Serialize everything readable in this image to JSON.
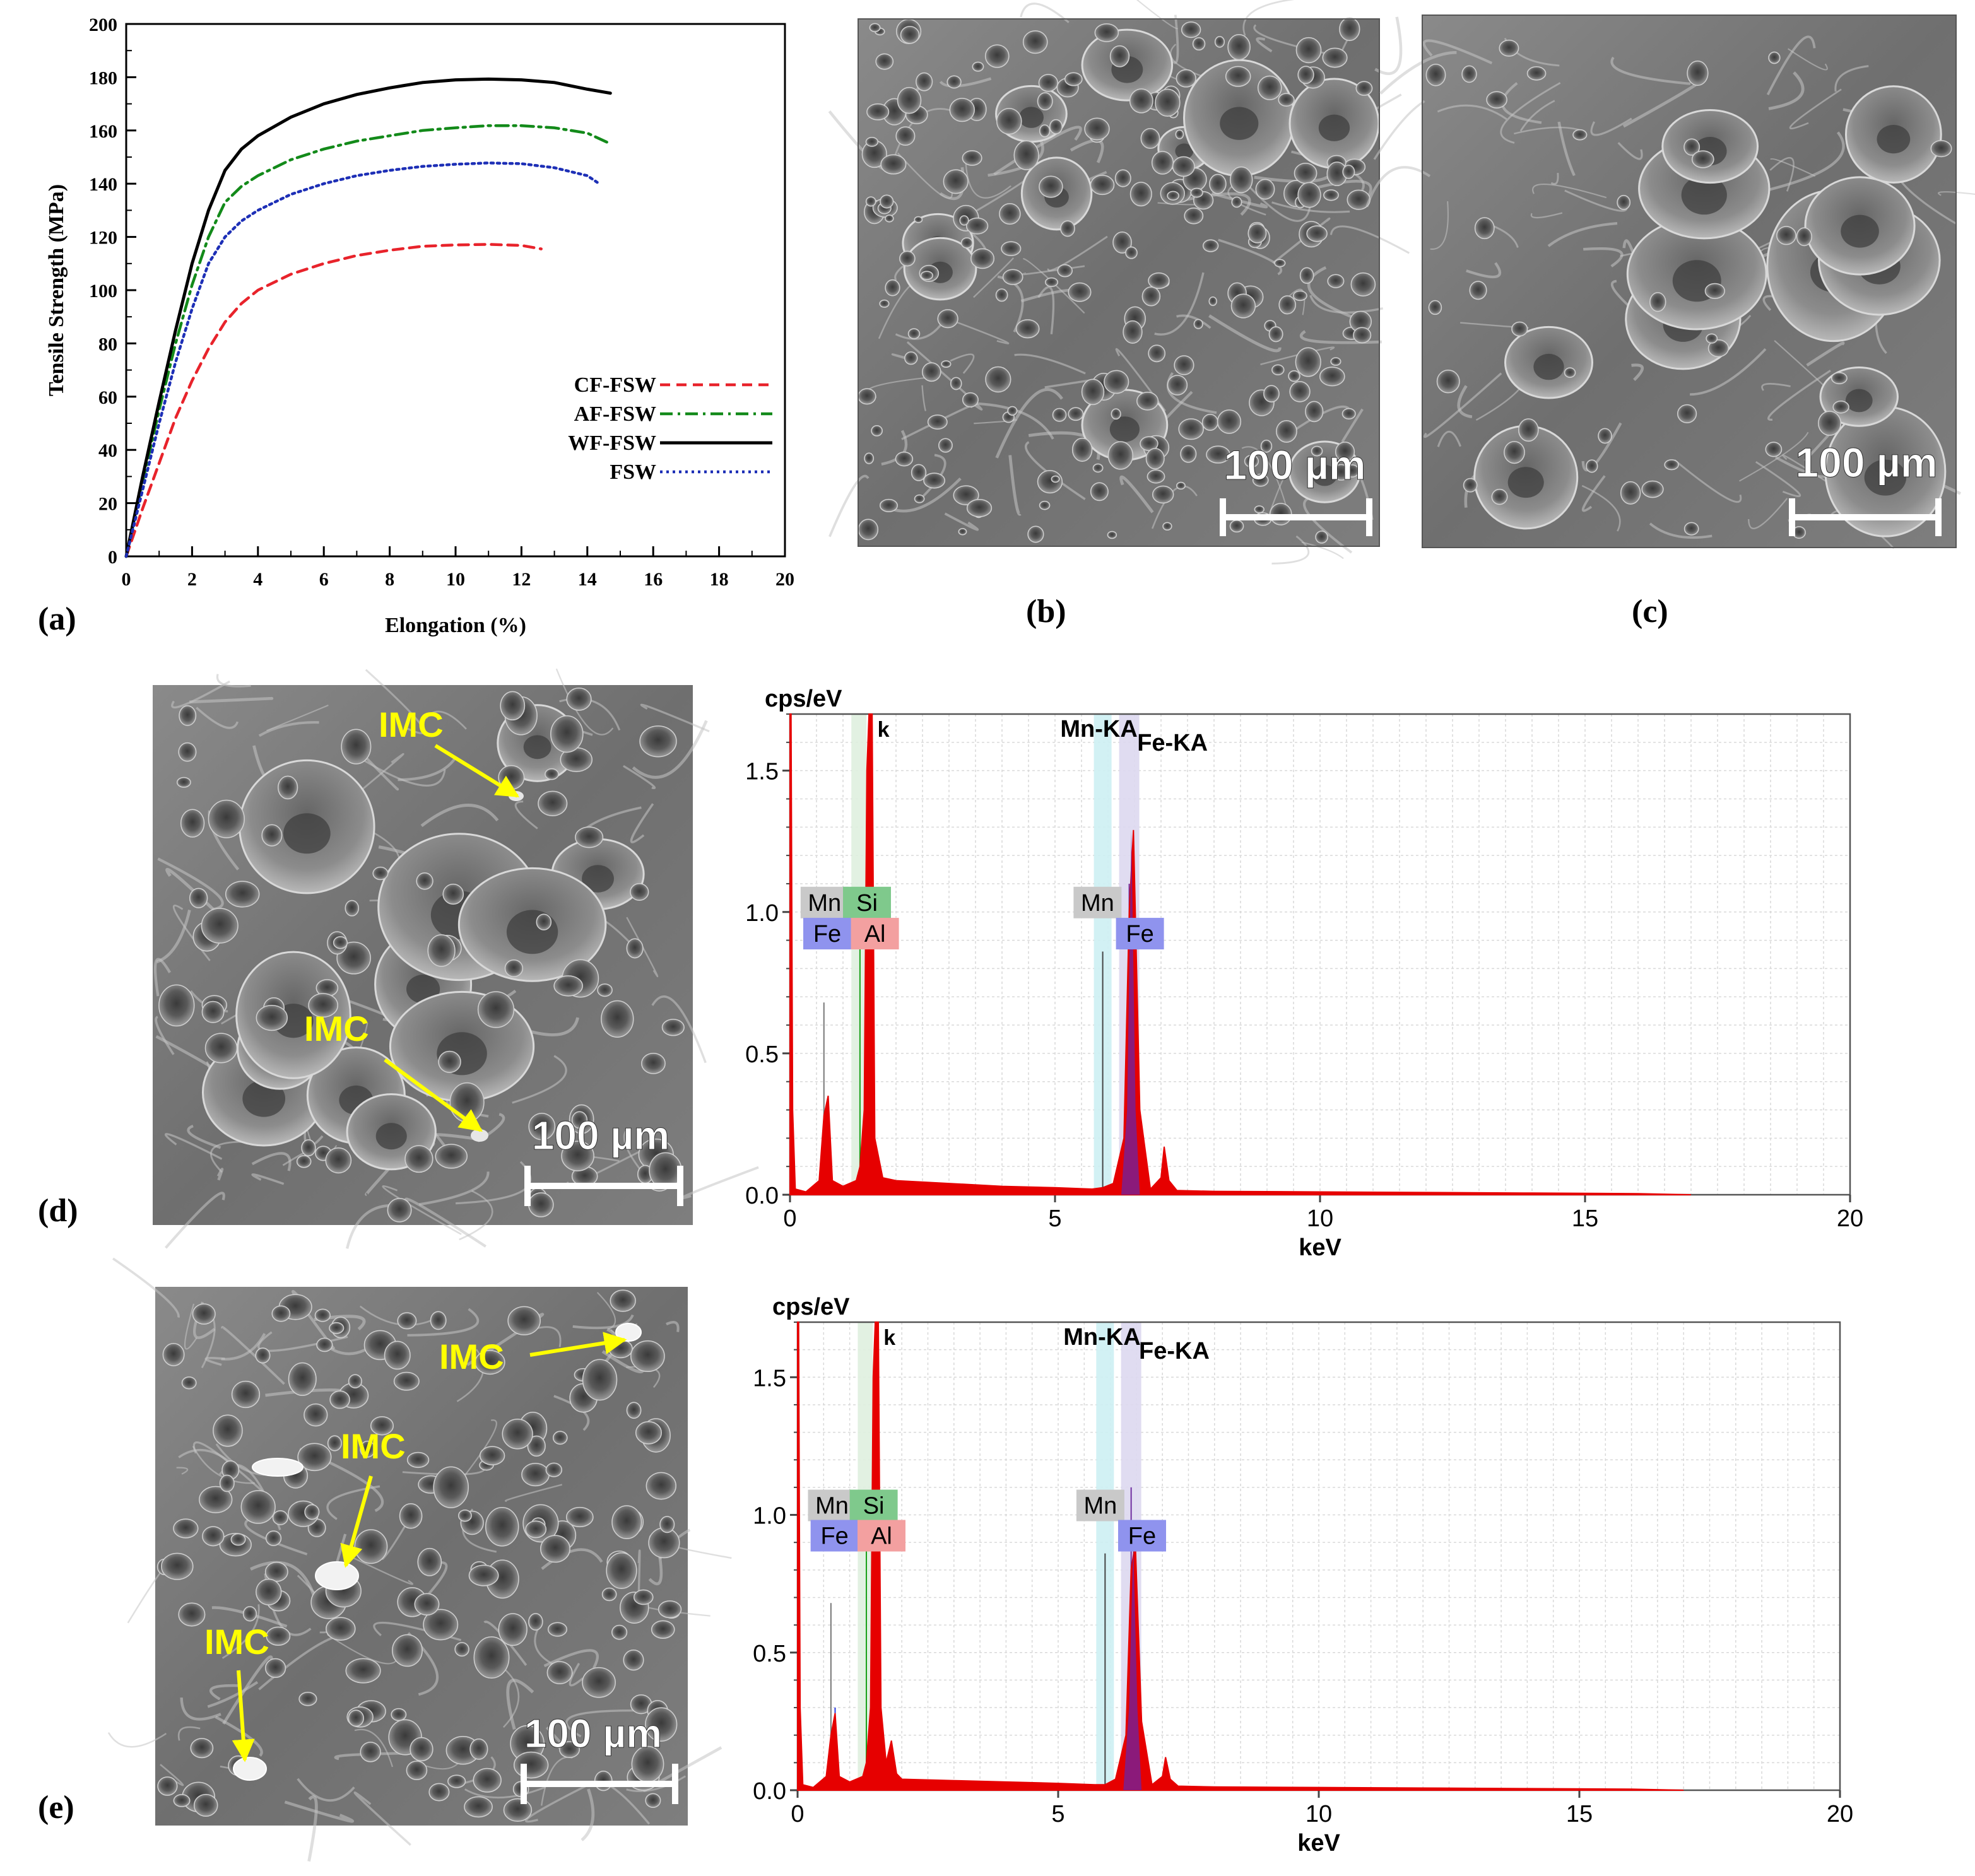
{
  "panel_labels": {
    "a": "(a)",
    "b": "(b)",
    "c": "(c)",
    "d": "(d)",
    "e": "(e)"
  },
  "scale_bars": {
    "b": "100 µm",
    "c": "100 µm",
    "d": "100 µm",
    "e": "100 µm"
  },
  "annotations": {
    "d": [
      "IMC",
      "IMC"
    ],
    "e": [
      "IMC",
      "IMC",
      "IMC"
    ]
  },
  "colors": {
    "cf": "#e8232b",
    "af": "#138a1a",
    "wf": "#000000",
    "fsw": "#1d2fb6",
    "spectrum": "#e60000",
    "imc": "#ffff00",
    "mn_box": "#c9c9c9",
    "si_box": "#7fc98c",
    "fe_box": "#8f93ee",
    "al_box": "#f3a0a0",
    "mn_band": "#cdeff3",
    "fe_band": "#ddd8ef"
  },
  "chart_data": [
    {
      "id": "a",
      "type": "line",
      "xlabel": "Elongation (%)",
      "ylabel": "Tensile Strength (MPa)",
      "xlim": [
        0,
        20
      ],
      "ylim": [
        0,
        200
      ],
      "xticks": [
        "0",
        "2",
        "4",
        "6",
        "8",
        "10",
        "12",
        "14",
        "16",
        "18",
        "20"
      ],
      "yticks": [
        "0",
        "20",
        "40",
        "60",
        "80",
        "100",
        "120",
        "140",
        "160",
        "180",
        "200"
      ],
      "legend_position": "center-right",
      "series": [
        {
          "name": "CF-FSW",
          "color_key": "cf",
          "dash": "dashed",
          "x": [
            0,
            0.5,
            1,
            1.5,
            2,
            2.5,
            3,
            3.5,
            4,
            5,
            6,
            7,
            8,
            9,
            10,
            11,
            12,
            12.6
          ],
          "y": [
            0,
            18,
            35,
            52,
            66,
            78,
            88,
            95,
            100,
            106,
            110,
            113,
            115,
            116.5,
            117,
            117.2,
            116.8,
            115.5
          ]
        },
        {
          "name": "AF-FSW",
          "color_key": "af",
          "dash": "dashdot",
          "x": [
            0,
            0.5,
            1,
            1.5,
            2,
            2.5,
            3,
            3.5,
            4,
            5,
            6,
            7,
            8,
            9,
            10,
            11,
            12,
            13,
            14,
            14.7
          ],
          "y": [
            0,
            28,
            55,
            80,
            102,
            120,
            133,
            139,
            143,
            149,
            153,
            156,
            158,
            160,
            161,
            161.8,
            161.8,
            161,
            159,
            155
          ]
        },
        {
          "name": "WF-FSW",
          "color_key": "wf",
          "dash": "solid",
          "x": [
            0,
            0.5,
            1,
            1.5,
            2,
            2.5,
            3,
            3.5,
            4,
            5,
            6,
            7,
            8,
            9,
            10,
            11,
            12,
            13,
            14,
            14.7
          ],
          "y": [
            0,
            30,
            58,
            85,
            110,
            130,
            145,
            153,
            158,
            165,
            170,
            173.5,
            176,
            178,
            179,
            179.3,
            179,
            178,
            175.5,
            174
          ]
        },
        {
          "name": "FSW",
          "color_key": "fsw",
          "dash": "dotted",
          "x": [
            0,
            0.5,
            1,
            1.5,
            2,
            2.5,
            3,
            3.5,
            4,
            5,
            6,
            7,
            8,
            9,
            10,
            11,
            12,
            13,
            14,
            14.3
          ],
          "y": [
            0,
            25,
            50,
            73,
            93,
            110,
            120,
            126,
            130,
            136,
            140,
            143,
            145,
            146.5,
            147.3,
            147.8,
            147.5,
            146,
            143,
            140.5
          ]
        }
      ]
    },
    {
      "id": "d",
      "type": "line",
      "ylabel": "cps/eV",
      "xlabel": "keV",
      "xlim": [
        0,
        20
      ],
      "ylim": [
        0,
        1.7
      ],
      "xticks": [
        "0",
        "5",
        "10",
        "15",
        "20"
      ],
      "yticks": [
        "0.0",
        "0.5",
        "1.0",
        "1.5"
      ],
      "peak_labels": [
        "Mn-KA",
        "Fe-KA",
        "k"
      ],
      "element_boxes": [
        "Mn",
        "Si",
        "Fe",
        "Al",
        "Mn",
        "Fe"
      ],
      "series": [
        {
          "name": "",
          "color_key": "spectrum",
          "x": [
            0.0,
            0.02,
            0.05,
            0.1,
            0.3,
            0.55,
            0.64,
            0.72,
            0.8,
            1.0,
            1.25,
            1.32,
            1.4,
            1.45,
            1.49,
            1.55,
            1.6,
            1.75,
            2.0,
            3.0,
            4.0,
            5.0,
            5.7,
            5.9,
            6.1,
            6.3,
            6.4,
            6.48,
            6.6,
            6.8,
            7.0,
            7.06,
            7.15,
            7.3,
            8.0,
            10.0,
            12.0,
            14.0,
            16.0,
            17.0
          ],
          "y": [
            1.7,
            1.7,
            0.3,
            0.02,
            0.01,
            0.05,
            0.28,
            0.35,
            0.05,
            0.03,
            0.05,
            0.1,
            0.3,
            1.5,
            1.7,
            1.7,
            0.2,
            0.06,
            0.05,
            0.04,
            0.03,
            0.025,
            0.02,
            0.025,
            0.04,
            0.2,
            1.0,
            1.29,
            0.3,
            0.02,
            0.06,
            0.17,
            0.05,
            0.015,
            0.012,
            0.01,
            0.008,
            0.006,
            0.004,
            0.0
          ]
        }
      ]
    },
    {
      "id": "e",
      "type": "line",
      "ylabel": "cps/eV",
      "xlabel": "keV",
      "xlim": [
        0,
        20
      ],
      "ylim": [
        0,
        1.7
      ],
      "xticks": [
        "0",
        "5",
        "10",
        "15",
        "20"
      ],
      "yticks": [
        "0.0",
        "0.5",
        "1.0",
        "1.5"
      ],
      "peak_labels": [
        "Mn-KA",
        "Fe-KA",
        "k"
      ],
      "element_boxes": [
        "Mn",
        "Si",
        "Fe",
        "Al",
        "Mn",
        "Fe"
      ],
      "series": [
        {
          "name": "",
          "color_key": "spectrum",
          "x": [
            0.0,
            0.02,
            0.05,
            0.1,
            0.3,
            0.55,
            0.64,
            0.72,
            0.8,
            1.0,
            1.25,
            1.32,
            1.4,
            1.45,
            1.49,
            1.55,
            1.6,
            1.7,
            1.8,
            1.9,
            2.0,
            3.0,
            4.0,
            5.0,
            5.7,
            5.9,
            6.1,
            6.3,
            6.4,
            6.48,
            6.6,
            6.8,
            7.0,
            7.06,
            7.15,
            7.3,
            8.0,
            10.0,
            12.0,
            14.0,
            16.0,
            17.0
          ],
          "y": [
            1.7,
            1.7,
            0.3,
            0.02,
            0.01,
            0.05,
            0.2,
            0.28,
            0.05,
            0.03,
            0.05,
            0.1,
            0.3,
            1.5,
            1.7,
            1.7,
            0.3,
            0.1,
            0.18,
            0.06,
            0.04,
            0.035,
            0.03,
            0.025,
            0.02,
            0.02,
            0.04,
            0.2,
            0.8,
            0.9,
            0.25,
            0.02,
            0.05,
            0.12,
            0.04,
            0.015,
            0.012,
            0.01,
            0.008,
            0.006,
            0.004,
            0.0
          ]
        }
      ]
    }
  ]
}
